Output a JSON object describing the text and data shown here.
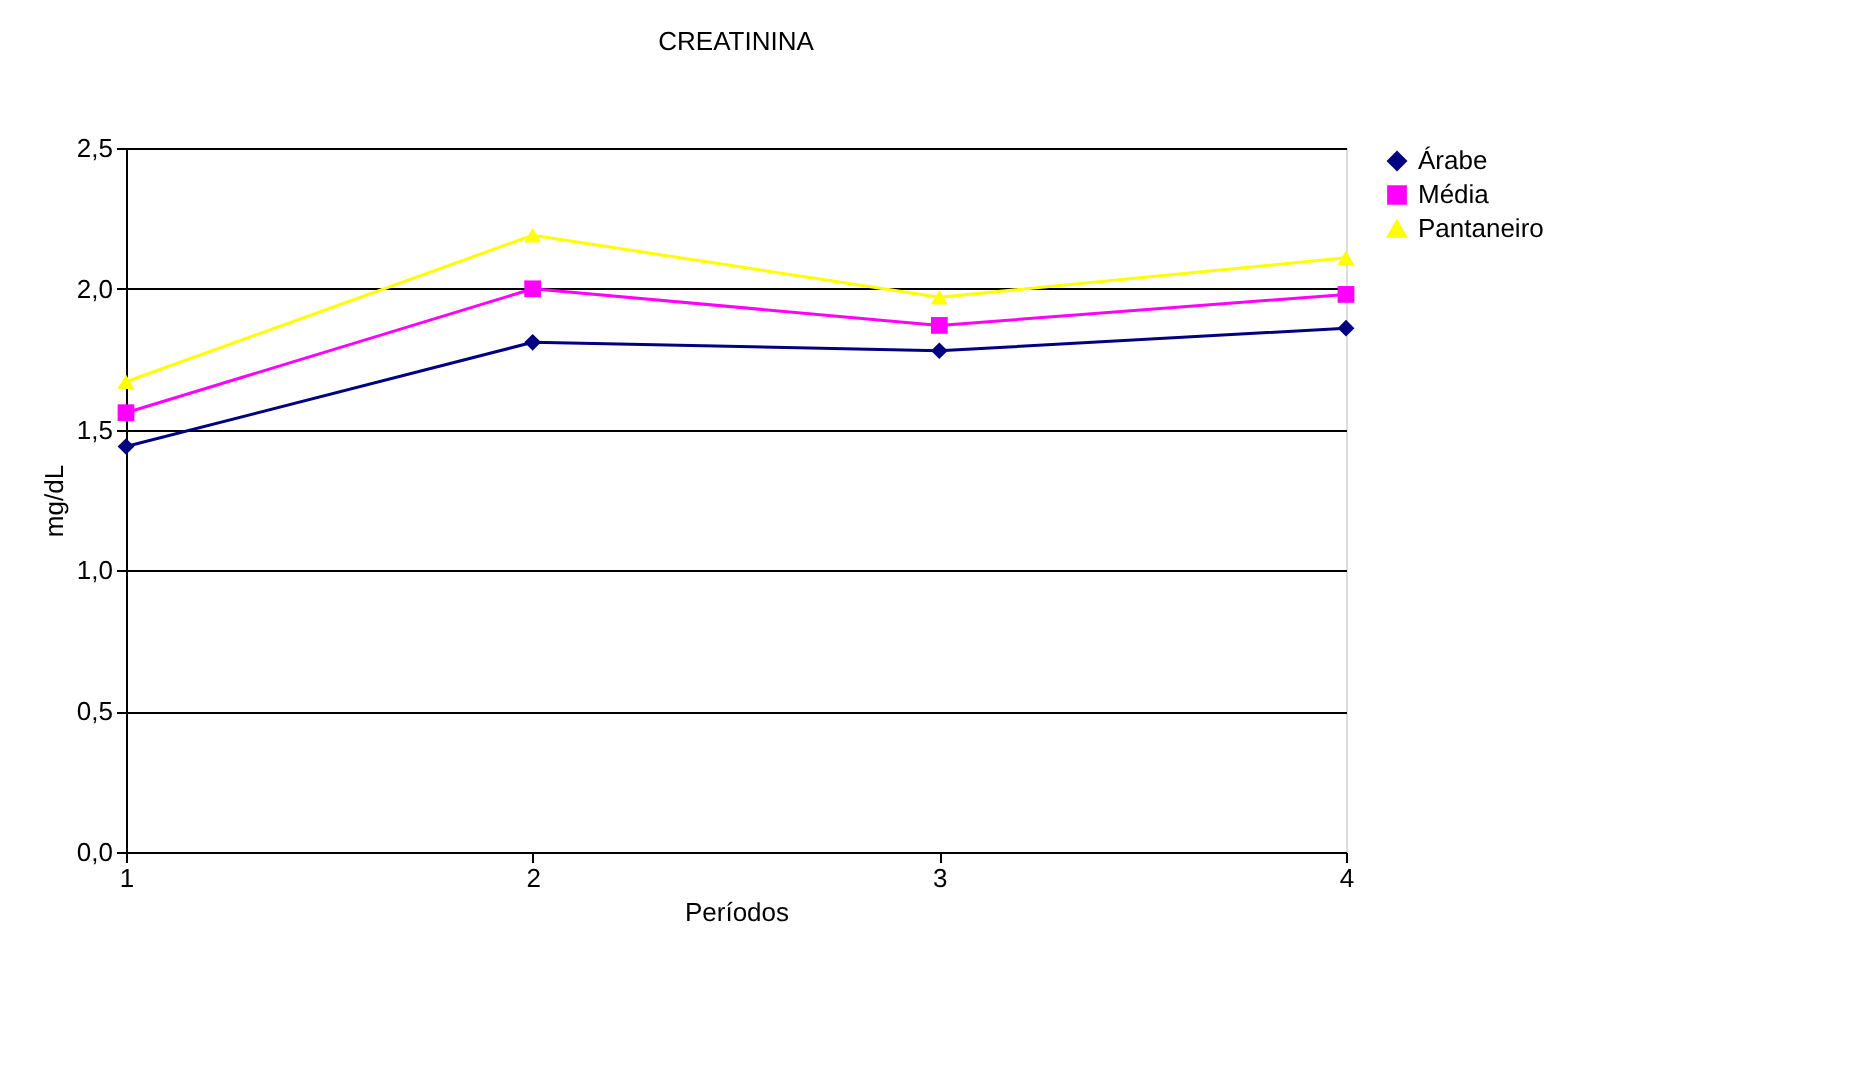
{
  "chart_data": {
    "type": "line",
    "title": "CREATININA",
    "xlabel": "Períodos",
    "ylabel": "mg/dL",
    "categories": [
      "1",
      "2",
      "3",
      "4"
    ],
    "series": [
      {
        "name": "Árabe",
        "color": "#000080",
        "marker": "diamond",
        "values": [
          1.44,
          1.81,
          1.78,
          1.86
        ]
      },
      {
        "name": "Média",
        "color": "#ff00ff",
        "marker": "square",
        "values": [
          1.56,
          2.0,
          1.87,
          1.98
        ]
      },
      {
        "name": "Pantaneiro",
        "color": "#ffff00",
        "marker": "triangle",
        "values": [
          1.67,
          2.19,
          1.97,
          2.11
        ]
      }
    ],
    "ylim": [
      0,
      2.5
    ],
    "yticks": [
      {
        "value": 0,
        "label": "0,0"
      },
      {
        "value": 0.5,
        "label": "0,5"
      },
      {
        "value": 1,
        "label": "1,0"
      },
      {
        "value": 1.5,
        "label": "1,5"
      },
      {
        "value": 2,
        "label": "2,0"
      },
      {
        "value": 2.5,
        "label": "2,5"
      }
    ],
    "grid": "y",
    "legend": "right",
    "line_style": "solid"
  }
}
